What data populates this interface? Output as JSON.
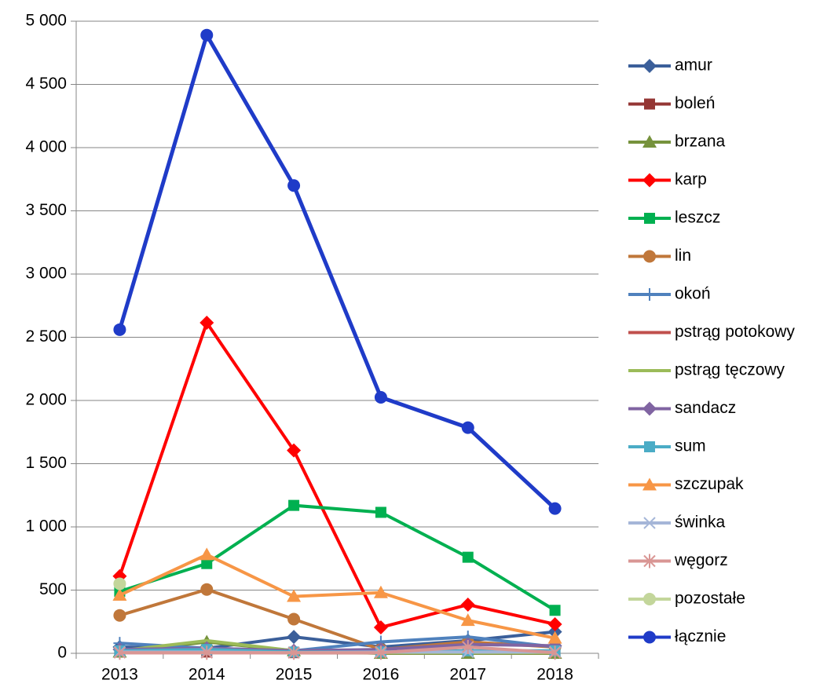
{
  "chart_data": {
    "type": "line",
    "categories": [
      "2013",
      "2014",
      "2015",
      "2016",
      "2017",
      "2018"
    ],
    "ylim": [
      0,
      5000
    ],
    "yticks": [
      0,
      500,
      {
        "value": 1000,
        "label": "1 000"
      },
      {
        "value": 1500,
        "label": "1 500"
      },
      {
        "value": 2000,
        "label": "2 000"
      },
      {
        "value": 2500,
        "label": "2 500"
      },
      {
        "value": 3000,
        "label": "3 000"
      },
      {
        "value": 3500,
        "label": "3 500"
      },
      {
        "value": 4000,
        "label": "4 000"
      },
      {
        "value": 4500,
        "label": "4 500"
      },
      {
        "value": 5000,
        "label": "5 000"
      }
    ],
    "grid": true,
    "legend": "right",
    "series": [
      {
        "name": "amur",
        "color": "#3b5f9a",
        "marker": "diamond",
        "values": [
          50,
          40,
          130,
          50,
          100,
          170
        ]
      },
      {
        "name": "boleń",
        "color": "#943634",
        "marker": "square",
        "values": [
          10,
          10,
          5,
          5,
          5,
          5
        ]
      },
      {
        "name": "brzana",
        "color": "#76923c",
        "marker": "triangle",
        "values": [
          10,
          90,
          20,
          0,
          0,
          0
        ]
      },
      {
        "name": "karp",
        "color": "#ff0000",
        "marker": "diamond",
        "values": [
          610,
          2615,
          1605,
          205,
          385,
          230
        ]
      },
      {
        "name": "leszcz",
        "color": "#00b050",
        "marker": "square",
        "values": [
          490,
          710,
          1170,
          1115,
          760,
          340
        ]
      },
      {
        "name": "lin",
        "color": "#c0773a",
        "marker": "circle",
        "values": [
          300,
          505,
          270,
          30,
          90,
          50
        ]
      },
      {
        "name": "okoń",
        "color": "#4f81bd",
        "marker": "plus",
        "values": [
          80,
          40,
          20,
          90,
          130,
          50
        ]
      },
      {
        "name": "pstrąg potokowy",
        "color": "#c0504d",
        "marker": "none",
        "values": [
          5,
          5,
          5,
          5,
          5,
          5
        ]
      },
      {
        "name": "pstrąg tęczowy",
        "color": "#9bbb59",
        "marker": "none",
        "values": [
          20,
          100,
          20,
          5,
          5,
          5
        ]
      },
      {
        "name": "sandacz",
        "color": "#8064a2",
        "marker": "diamond",
        "values": [
          30,
          40,
          20,
          30,
          70,
          60
        ]
      },
      {
        "name": "sum",
        "color": "#4bacc6",
        "marker": "square",
        "values": [
          20,
          30,
          10,
          10,
          20,
          20
        ]
      },
      {
        "name": "szczupak",
        "color": "#f79646",
        "marker": "triangle",
        "values": [
          460,
          780,
          450,
          480,
          260,
          120
        ]
      },
      {
        "name": "świnka",
        "color": "#a5b6d8",
        "marker": "x",
        "values": [
          10,
          10,
          5,
          10,
          10,
          10
        ]
      },
      {
        "name": "węgorz",
        "color": "#d99694",
        "marker": "star",
        "values": [
          5,
          5,
          5,
          5,
          50,
          5
        ]
      },
      {
        "name": "pozostałe",
        "color": "#c3d69b",
        "marker": "circle",
        "values": [
          550,
          null,
          null,
          null,
          null,
          null
        ]
      },
      {
        "name": "łącznie",
        "color": "#1f3bc8",
        "marker": "circle",
        "values": [
          2560,
          4890,
          3700,
          2025,
          1785,
          1145
        ]
      }
    ]
  }
}
